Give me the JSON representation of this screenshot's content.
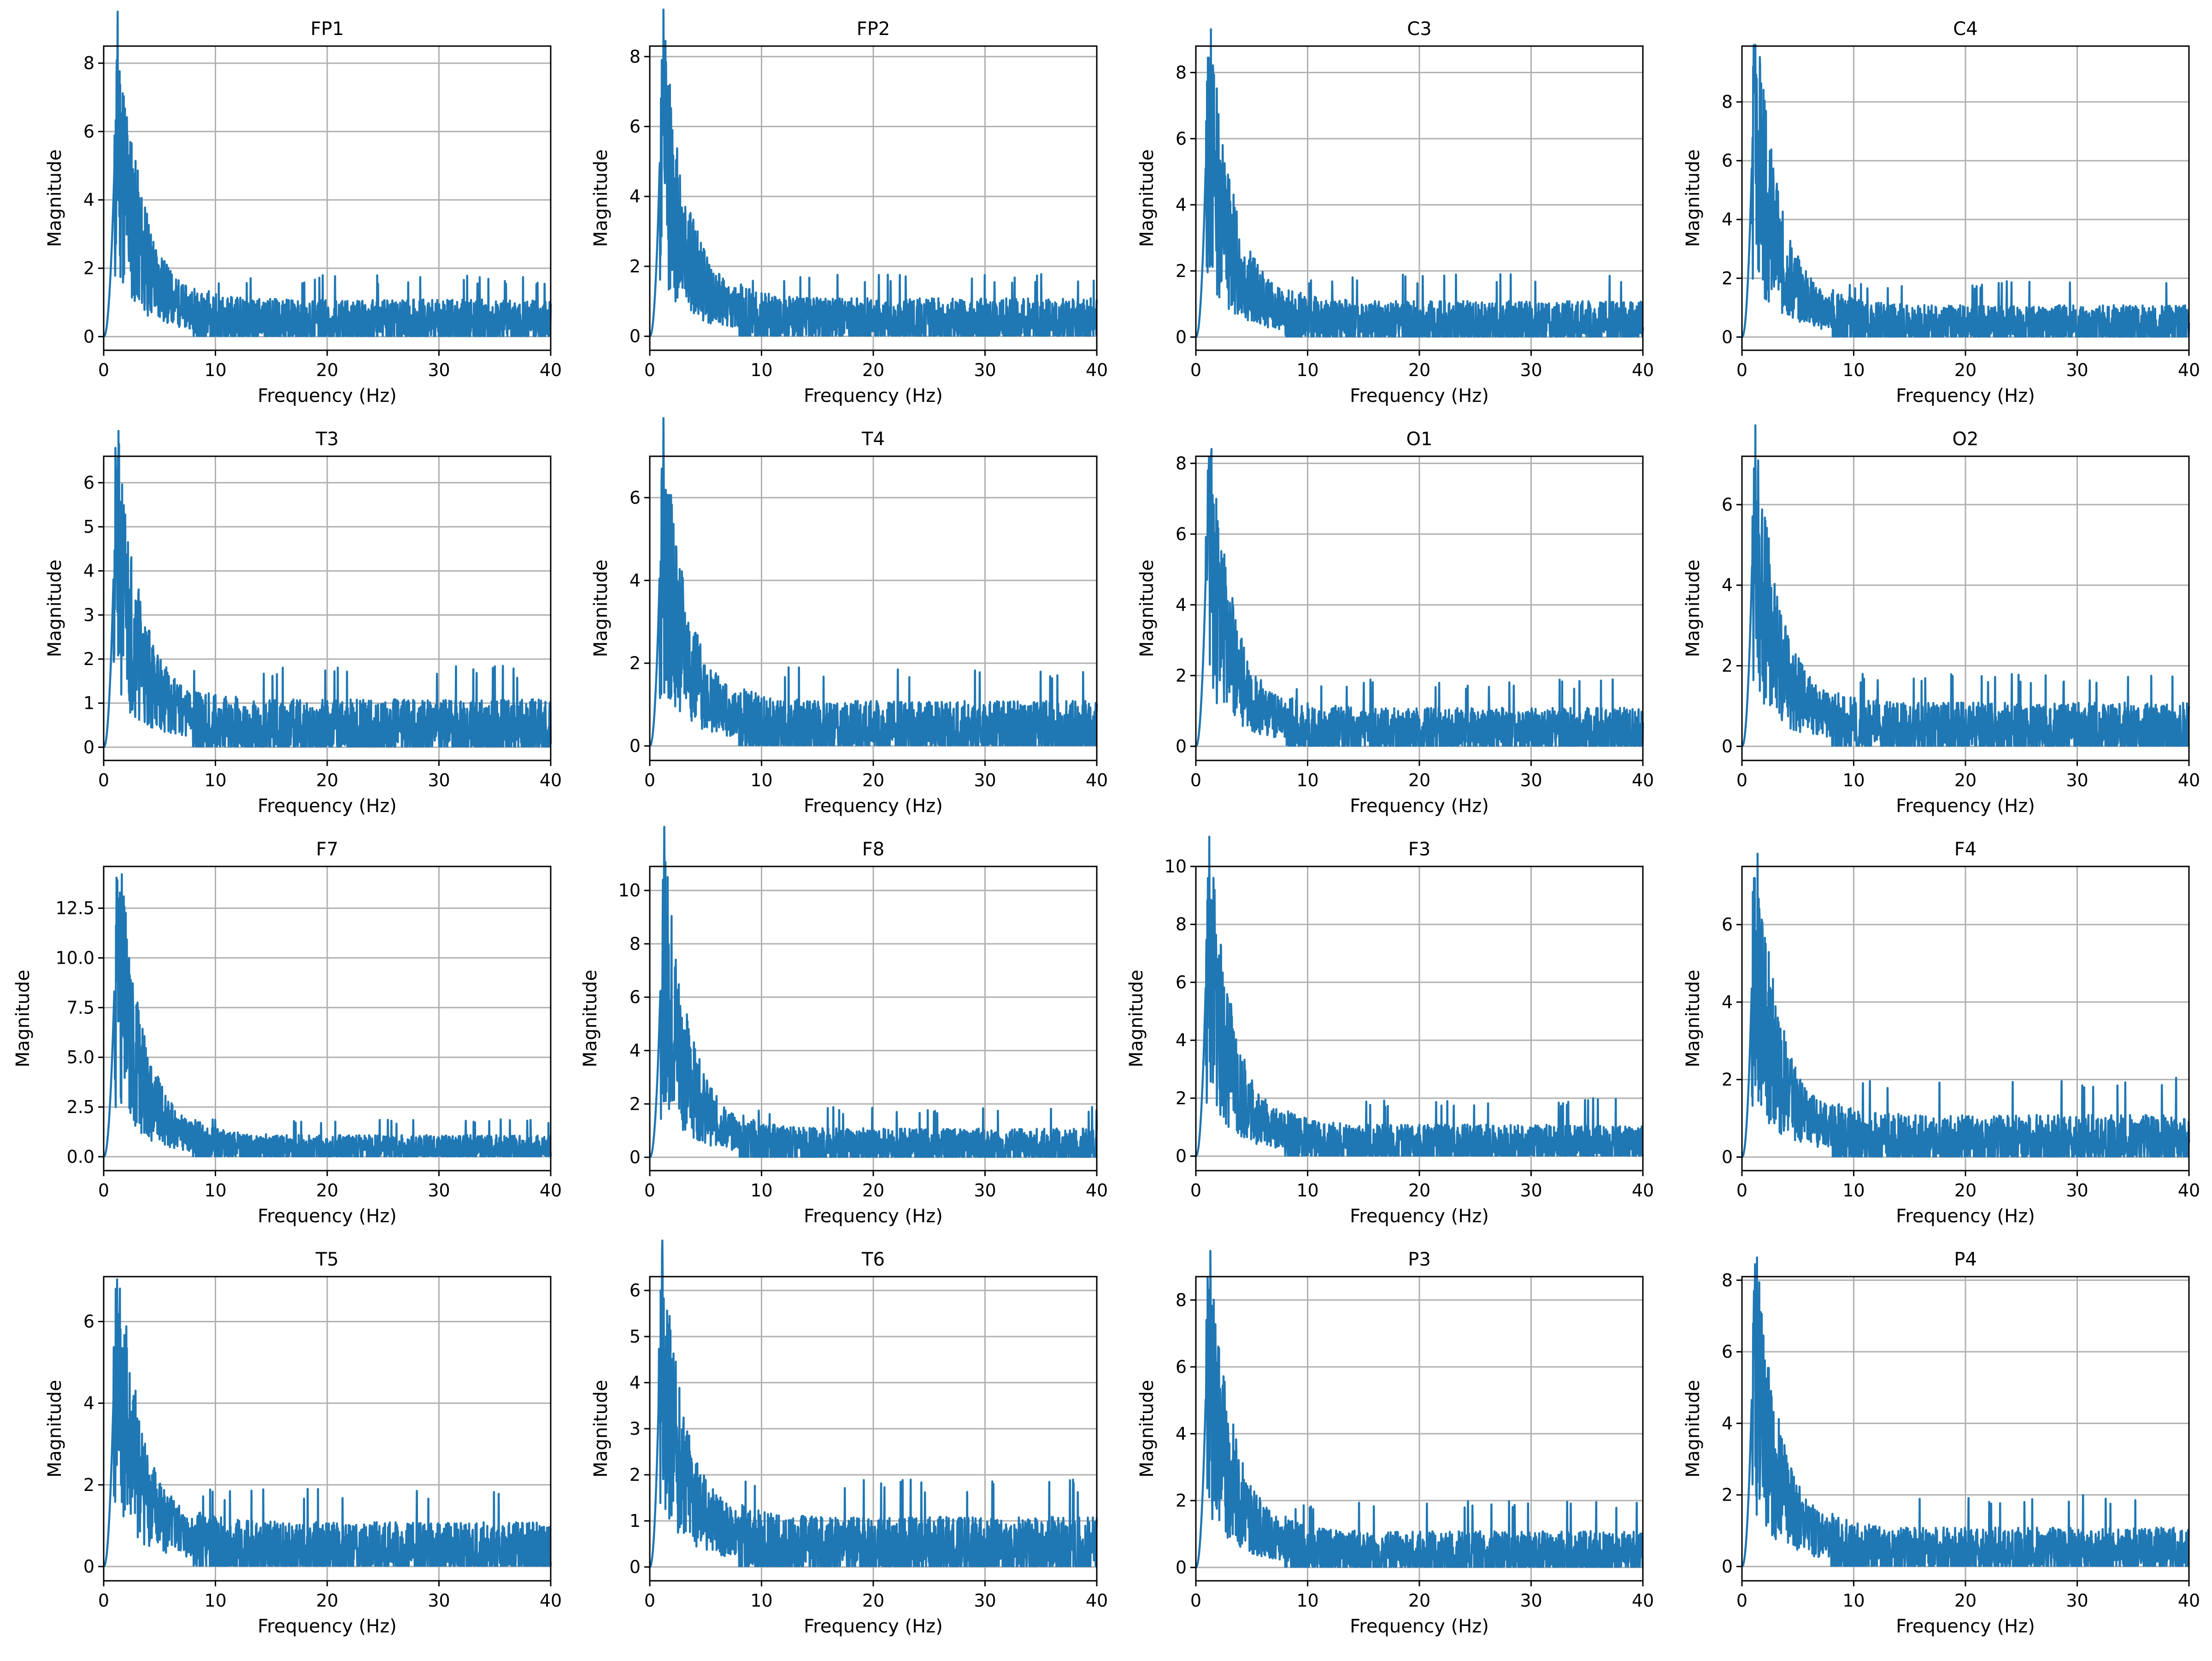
{
  "figure": {
    "rows": 4,
    "cols": 4,
    "line_color": "#1f77b4",
    "grid_color": "#b0b0b0",
    "xlabel": "Frequency (Hz)",
    "ylabel": "Magnitude"
  },
  "chart_data": [
    {
      "type": "line",
      "title": "FP1",
      "xlabel": "Frequency (Hz)",
      "ylabel": "Magnitude",
      "xlim": [
        0,
        40
      ],
      "xticks": [
        0,
        10,
        20,
        30,
        40
      ],
      "ylim": [
        -0.4,
        8.5
      ],
      "yticks": [
        0,
        2,
        4,
        6,
        8
      ],
      "ytick_labels": [
        "0",
        "2",
        "4",
        "6",
        "8"
      ],
      "grid": true,
      "peak_freq_hz": 1.2,
      "peak_magnitude": 8.1,
      "noise_floor_max": 1.8,
      "seed": 11
    },
    {
      "type": "line",
      "title": "FP2",
      "xlabel": "Frequency (Hz)",
      "ylabel": "Magnitude",
      "xlim": [
        0,
        40
      ],
      "xticks": [
        0,
        10,
        20,
        30,
        40
      ],
      "ylim": [
        -0.4,
        8.3
      ],
      "yticks": [
        0,
        2,
        4,
        6,
        8
      ],
      "ytick_labels": [
        "0",
        "2",
        "4",
        "6",
        "8"
      ],
      "grid": true,
      "peak_freq_hz": 1.1,
      "peak_magnitude": 7.9,
      "noise_floor_max": 1.8,
      "seed": 12
    },
    {
      "type": "line",
      "title": "C3",
      "xlabel": "Frequency (Hz)",
      "ylabel": "Magnitude",
      "xlim": [
        0,
        40
      ],
      "xticks": [
        0,
        10,
        20,
        30,
        40
      ],
      "ylim": [
        -0.4,
        8.8
      ],
      "yticks": [
        0,
        2,
        4,
        6,
        8
      ],
      "ytick_labels": [
        "0",
        "2",
        "4",
        "6",
        "8"
      ],
      "grid": true,
      "peak_freq_hz": 1.1,
      "peak_magnitude": 8.45,
      "noise_floor_max": 1.9,
      "seed": 13
    },
    {
      "type": "line",
      "title": "C4",
      "xlabel": "Frequency (Hz)",
      "ylabel": "Magnitude",
      "xlim": [
        0,
        40
      ],
      "xticks": [
        0,
        10,
        20,
        30,
        40
      ],
      "ylim": [
        -0.45,
        9.9
      ],
      "yticks": [
        0,
        2,
        4,
        6,
        8
      ],
      "ytick_labels": [
        "0",
        "2",
        "4",
        "6",
        "8"
      ],
      "grid": true,
      "peak_freq_hz": 1.1,
      "peak_magnitude": 9.5,
      "noise_floor_max": 1.9,
      "seed": 14
    },
    {
      "type": "line",
      "title": "T3",
      "xlabel": "Frequency (Hz)",
      "ylabel": "Magnitude",
      "xlim": [
        0,
        40
      ],
      "xticks": [
        0,
        10,
        20,
        30,
        40
      ],
      "ylim": [
        -0.3,
        6.6
      ],
      "yticks": [
        0,
        1,
        2,
        3,
        4,
        5,
        6
      ],
      "ytick_labels": [
        "0",
        "1",
        "2",
        "3",
        "4",
        "5",
        "6"
      ],
      "grid": true,
      "peak_freq_hz": 1.1,
      "peak_magnitude": 6.3,
      "noise_floor_max": 1.85,
      "seed": 21
    },
    {
      "type": "line",
      "title": "T4",
      "xlabel": "Frequency (Hz)",
      "ylabel": "Magnitude",
      "xlim": [
        0,
        40
      ],
      "xticks": [
        0,
        10,
        20,
        30,
        40
      ],
      "ylim": [
        -0.35,
        7.0
      ],
      "yticks": [
        0,
        2,
        4,
        6
      ],
      "ytick_labels": [
        "0",
        "2",
        "4",
        "6"
      ],
      "grid": true,
      "peak_freq_hz": 1.1,
      "peak_magnitude": 6.7,
      "noise_floor_max": 1.9,
      "seed": 22
    },
    {
      "type": "line",
      "title": "O1",
      "xlabel": "Frequency (Hz)",
      "ylabel": "Magnitude",
      "xlim": [
        0,
        40
      ],
      "xticks": [
        0,
        10,
        20,
        30,
        40
      ],
      "ylim": [
        -0.4,
        8.2
      ],
      "yticks": [
        0,
        2,
        4,
        6,
        8
      ],
      "ytick_labels": [
        "0",
        "2",
        "4",
        "6",
        "8"
      ],
      "grid": true,
      "peak_freq_hz": 1.1,
      "peak_magnitude": 7.8,
      "noise_floor_max": 1.9,
      "seed": 23
    },
    {
      "type": "line",
      "title": "O2",
      "xlabel": "Frequency (Hz)",
      "ylabel": "Magnitude",
      "xlim": [
        0,
        40
      ],
      "xticks": [
        0,
        10,
        20,
        30,
        40
      ],
      "ylim": [
        -0.35,
        7.2
      ],
      "yticks": [
        0,
        2,
        4,
        6
      ],
      "ytick_labels": [
        "0",
        "2",
        "4",
        "6"
      ],
      "grid": true,
      "peak_freq_hz": 1.1,
      "peak_magnitude": 6.9,
      "noise_floor_max": 1.8,
      "seed": 24
    },
    {
      "type": "line",
      "title": "F7",
      "xlabel": "Frequency (Hz)",
      "ylabel": "Magnitude",
      "xlim": [
        0,
        40
      ],
      "xticks": [
        0,
        10,
        20,
        30,
        40
      ],
      "ylim": [
        -0.7,
        14.6
      ],
      "yticks": [
        0,
        2.5,
        5,
        7.5,
        10,
        12.5
      ],
      "ytick_labels": [
        "0.0",
        "2.5",
        "5.0",
        "7.5",
        "10.0",
        "12.5"
      ],
      "grid": true,
      "peak_freq_hz": 1.2,
      "peak_magnitude": 13.9,
      "noise_floor_max": 1.9,
      "seed": 31
    },
    {
      "type": "line",
      "title": "F8",
      "xlabel": "Frequency (Hz)",
      "ylabel": "Magnitude",
      "xlim": [
        0,
        40
      ],
      "xticks": [
        0,
        10,
        20,
        30,
        40
      ],
      "ylim": [
        -0.5,
        10.9
      ],
      "yticks": [
        0,
        2,
        4,
        6,
        8,
        10
      ],
      "ytick_labels": [
        "0",
        "2",
        "4",
        "6",
        "8",
        "10"
      ],
      "grid": true,
      "peak_freq_hz": 1.2,
      "peak_magnitude": 10.4,
      "noise_floor_max": 1.9,
      "seed": 32
    },
    {
      "type": "line",
      "title": "F3",
      "xlabel": "Frequency (Hz)",
      "ylabel": "Magnitude",
      "xlim": [
        0,
        40
      ],
      "xticks": [
        0,
        10,
        20,
        30,
        40
      ],
      "ylim": [
        -0.5,
        10.0
      ],
      "yticks": [
        0,
        2,
        4,
        6,
        8,
        10
      ],
      "ytick_labels": [
        "0",
        "2",
        "4",
        "6",
        "8",
        "10"
      ],
      "grid": true,
      "peak_freq_hz": 1.1,
      "peak_magnitude": 9.6,
      "noise_floor_max": 2.0,
      "seed": 33
    },
    {
      "type": "line",
      "title": "F4",
      "xlabel": "Frequency (Hz)",
      "ylabel": "Magnitude",
      "xlim": [
        0,
        40
      ],
      "xticks": [
        0,
        10,
        20,
        30,
        40
      ],
      "ylim": [
        -0.35,
        7.5
      ],
      "yticks": [
        0,
        2,
        4,
        6
      ],
      "ytick_labels": [
        "0",
        "2",
        "4",
        "6"
      ],
      "grid": true,
      "peak_freq_hz": 1.1,
      "peak_magnitude": 7.2,
      "noise_floor_max": 2.05,
      "seed": 34
    },
    {
      "type": "line",
      "title": "T5",
      "xlabel": "Frequency (Hz)",
      "ylabel": "Magnitude",
      "xlim": [
        0,
        40
      ],
      "xticks": [
        0,
        10,
        20,
        30,
        40
      ],
      "ylim": [
        -0.35,
        7.1
      ],
      "yticks": [
        0,
        2,
        4,
        6
      ],
      "ytick_labels": [
        "0",
        "2",
        "4",
        "6"
      ],
      "grid": true,
      "peak_freq_hz": 1.1,
      "peak_magnitude": 6.8,
      "noise_floor_max": 1.9,
      "seed": 41
    },
    {
      "type": "line",
      "title": "T6",
      "xlabel": "Frequency (Hz)",
      "ylabel": "Magnitude",
      "xlim": [
        0,
        40
      ],
      "xticks": [
        0,
        10,
        20,
        30,
        40
      ],
      "ylim": [
        -0.3,
        6.3
      ],
      "yticks": [
        0,
        1,
        2,
        3,
        4,
        5,
        6
      ],
      "ytick_labels": [
        "0",
        "1",
        "2",
        "3",
        "4",
        "5",
        "6"
      ],
      "grid": true,
      "peak_freq_hz": 1.0,
      "peak_magnitude": 6.0,
      "noise_floor_max": 1.9,
      "seed": 42
    },
    {
      "type": "line",
      "title": "P3",
      "xlabel": "Frequency (Hz)",
      "ylabel": "Magnitude",
      "xlim": [
        0,
        40
      ],
      "xticks": [
        0,
        10,
        20,
        30,
        40
      ],
      "ylim": [
        -0.4,
        8.7
      ],
      "yticks": [
        0,
        2,
        4,
        6,
        8
      ],
      "ytick_labels": [
        "0",
        "2",
        "4",
        "6",
        "8"
      ],
      "grid": true,
      "peak_freq_hz": 1.1,
      "peak_magnitude": 8.3,
      "noise_floor_max": 2.0,
      "seed": 43
    },
    {
      "type": "line",
      "title": "P4",
      "xlabel": "Frequency (Hz)",
      "ylabel": "Magnitude",
      "xlim": [
        0,
        40
      ],
      "xticks": [
        0,
        10,
        20,
        30,
        40
      ],
      "ylim": [
        -0.4,
        8.1
      ],
      "yticks": [
        0,
        2,
        4,
        6,
        8
      ],
      "ytick_labels": [
        "0",
        "2",
        "4",
        "6",
        "8"
      ],
      "grid": true,
      "peak_freq_hz": 1.1,
      "peak_magnitude": 7.7,
      "noise_floor_max": 2.0,
      "seed": 44
    }
  ]
}
